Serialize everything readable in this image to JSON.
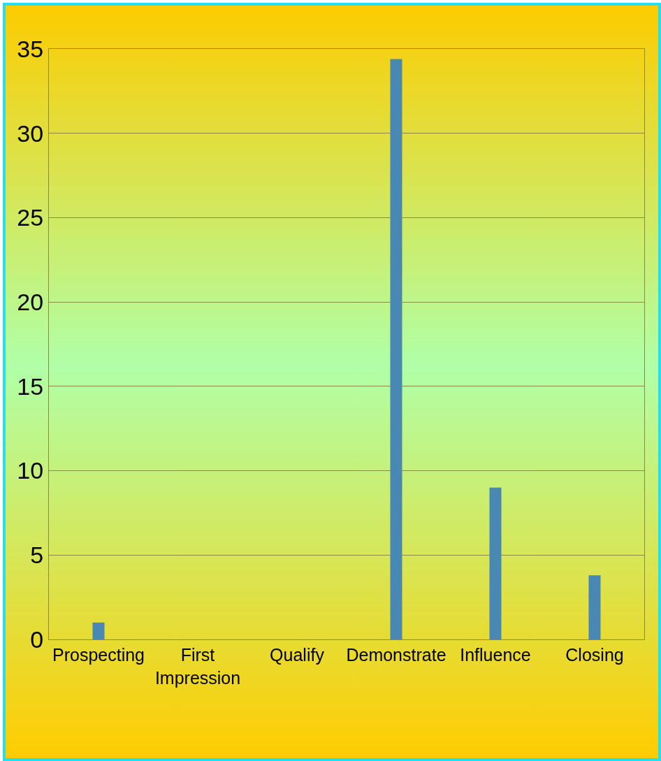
{
  "chart_data": {
    "type": "bar",
    "categories": [
      "Prospecting",
      "First Impression",
      "Qualify",
      "Demonstrate",
      "Influence",
      "Closing"
    ],
    "values": [
      1,
      0,
      0,
      34.4,
      9,
      3.8
    ],
    "color": "#4a88b4",
    "ylim": [
      0,
      35
    ],
    "yticks": [
      0,
      5,
      10,
      15,
      20,
      25,
      30,
      35
    ],
    "grid": "y",
    "legend": false
  }
}
